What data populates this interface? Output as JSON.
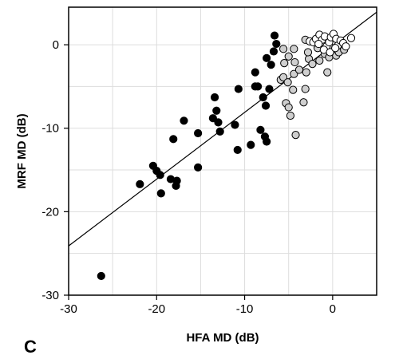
{
  "panel_label": "C",
  "chart_data": {
    "type": "scatter",
    "title": "",
    "xlabel": "HFA MD (dB)",
    "ylabel": "MRF MD (dB)",
    "xlim": [
      -30,
      5
    ],
    "ylim": [
      -30,
      4.5
    ],
    "xticks": [
      -30,
      -20,
      -10,
      0
    ],
    "yticks": [
      -30,
      -20,
      -10,
      0
    ],
    "grid": true,
    "colors": {
      "black": "#000000",
      "gray": "#cfcfcf",
      "white": "#ffffff",
      "grid": "#dddddd"
    },
    "trendline": {
      "x": [
        -30,
        5
      ],
      "y": [
        -24.1,
        3.9
      ]
    },
    "series": [
      {
        "fill": "black",
        "points": [
          [
            -26.3,
            -27.7
          ],
          [
            -21.9,
            -16.7
          ],
          [
            -20.4,
            -14.5
          ],
          [
            -20.0,
            -15.1
          ],
          [
            -19.6,
            -15.6
          ],
          [
            -19.5,
            -17.8
          ],
          [
            -18.4,
            -16.1
          ],
          [
            -17.8,
            -16.9
          ],
          [
            -17.7,
            -16.3
          ],
          [
            -18.1,
            -11.3
          ],
          [
            -16.9,
            -9.1
          ],
          [
            -15.3,
            -10.6
          ],
          [
            -15.3,
            -14.7
          ],
          [
            -13.6,
            -8.8
          ],
          [
            -13.4,
            -6.3
          ],
          [
            -13.2,
            -7.9
          ],
          [
            -13.0,
            -9.3
          ],
          [
            -12.8,
            -10.4
          ],
          [
            -11.1,
            -9.6
          ],
          [
            -10.8,
            -12.6
          ],
          [
            -10.7,
            -5.3
          ],
          [
            -9.3,
            -12.0
          ],
          [
            -8.8,
            -5.0
          ],
          [
            -8.5,
            -5.0
          ],
          [
            -8.8,
            -3.3
          ],
          [
            -8.2,
            -10.2
          ],
          [
            -7.7,
            -11.0
          ],
          [
            -7.5,
            -11.6
          ],
          [
            -7.9,
            -6.3
          ],
          [
            -7.6,
            -7.3
          ],
          [
            -7.2,
            -5.3
          ],
          [
            -7.5,
            -1.6
          ],
          [
            -7.0,
            -2.4
          ],
          [
            -6.7,
            -0.8
          ],
          [
            -6.6,
            1.1
          ],
          [
            -6.4,
            0.1
          ]
        ]
      },
      {
        "fill": "gray",
        "points": [
          [
            -5.9,
            -4.2
          ],
          [
            -5.6,
            -3.9
          ],
          [
            -5.5,
            -2.2
          ],
          [
            -5.1,
            -4.5
          ],
          [
            -5.3,
            -7.0
          ],
          [
            -5.0,
            -7.5
          ],
          [
            -4.8,
            -8.5
          ],
          [
            -4.2,
            -10.8
          ],
          [
            -4.5,
            -5.4
          ],
          [
            -4.4,
            -3.5
          ],
          [
            -4.3,
            -2.1
          ],
          [
            -3.8,
            -3.0
          ],
          [
            -3.3,
            -6.9
          ],
          [
            -3.1,
            -5.3
          ],
          [
            -3.0,
            -3.3
          ],
          [
            -2.7,
            -1.7
          ],
          [
            -2.3,
            -2.3
          ],
          [
            -2.8,
            -0.9
          ],
          [
            -5.6,
            -0.5
          ],
          [
            -5.0,
            -1.4
          ],
          [
            -4.4,
            -0.5
          ],
          [
            -3.1,
            0.6
          ],
          [
            -1.7,
            -0.4
          ],
          [
            -1.5,
            -1.9
          ],
          [
            -0.9,
            -1.1
          ],
          [
            -0.4,
            -1.5
          ],
          [
            -0.6,
            -3.3
          ],
          [
            0.4,
            -1.3
          ],
          [
            0.7,
            -0.9
          ],
          [
            1.3,
            -0.6
          ],
          [
            -0.1,
            -0.4
          ]
        ]
      },
      {
        "fill": "white",
        "points": [
          [
            -2.6,
            0.4
          ],
          [
            -2.2,
            0.3
          ],
          [
            -1.9,
            0.7
          ],
          [
            -1.5,
            1.2
          ],
          [
            -1.2,
            0.6
          ],
          [
            -0.9,
            1.0
          ],
          [
            -0.7,
            -0.2
          ],
          [
            -0.4,
            0.3
          ],
          [
            -0.2,
            0.9
          ],
          [
            0.1,
            1.3
          ],
          [
            0.4,
            0.7
          ],
          [
            0.6,
            -0.1
          ],
          [
            0.9,
            0.5
          ],
          [
            1.2,
            0.2
          ],
          [
            2.1,
            0.8
          ],
          [
            -1.0,
            -0.6
          ],
          [
            -0.3,
            -0.9
          ],
          [
            0.3,
            -0.4
          ],
          [
            -1.6,
            0.1
          ],
          [
            1.5,
            -0.2
          ]
        ]
      }
    ]
  }
}
